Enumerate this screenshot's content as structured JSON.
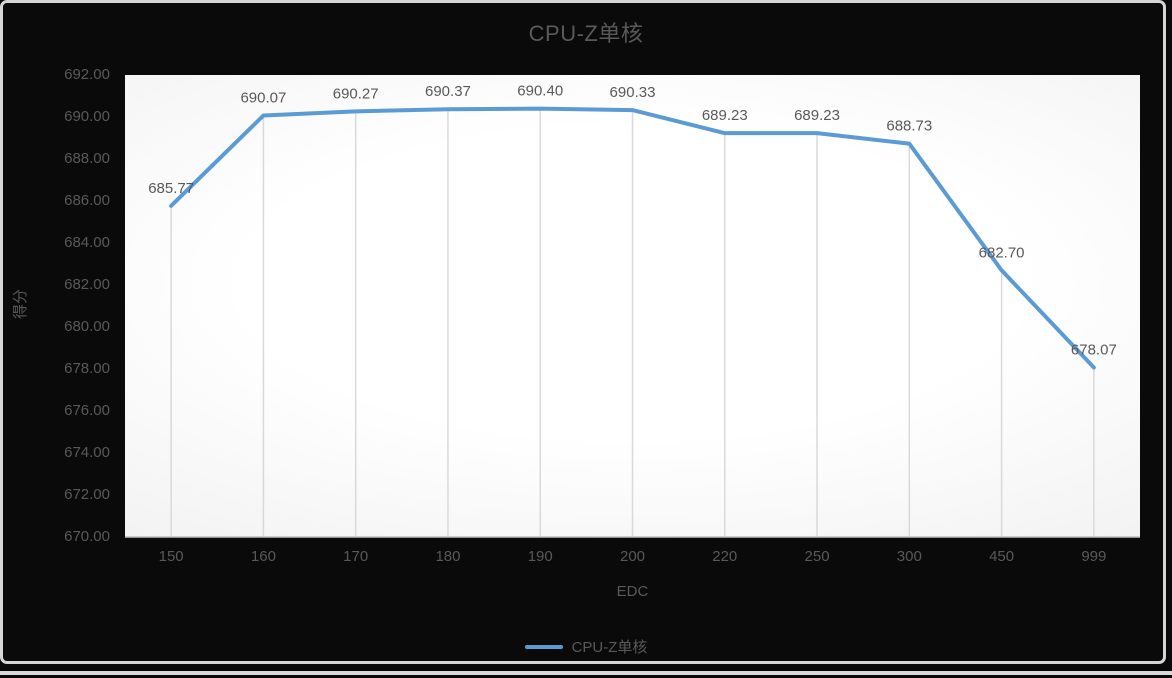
{
  "chart_data": {
    "type": "line",
    "title": "CPU-Z单核",
    "xlabel": "EDC",
    "ylabel": "得分",
    "categories": [
      "150",
      "160",
      "170",
      "180",
      "190",
      "200",
      "220",
      "250",
      "300",
      "450",
      "999"
    ],
    "series": [
      {
        "name": "CPU-Z单核",
        "values": [
          685.77,
          690.07,
          690.27,
          690.37,
          690.4,
          690.33,
          689.23,
          689.23,
          688.73,
          682.7,
          678.07
        ]
      }
    ],
    "point_labels": [
      "685.77",
      "690.07",
      "690.27",
      "690.37",
      "690.40",
      "690.33",
      "689.23",
      "689.23",
      "688.73",
      "682.70",
      "678.07"
    ],
    "ylim": [
      670,
      692
    ],
    "ytick_step": 2,
    "ytick_labels": [
      "692.00",
      "690.00",
      "688.00",
      "686.00",
      "684.00",
      "682.00",
      "680.00",
      "678.00",
      "676.00",
      "674.00",
      "672.00",
      "670.00"
    ],
    "grid": "vertical-drop-lines-only",
    "legend": {
      "position": "bottom-center",
      "entries": [
        "CPU-Z单核"
      ]
    },
    "colors": {
      "line": "#5B9BD5",
      "text": "#595959",
      "gridline": "#D9D9D9",
      "axis": "#BFBFBF"
    }
  }
}
